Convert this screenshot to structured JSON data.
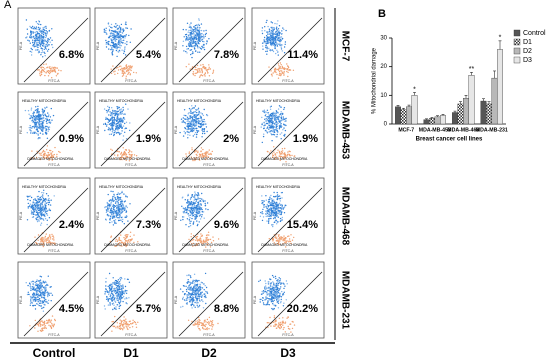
{
  "panel_a": {
    "label": "A",
    "columns": [
      "Control",
      "D1",
      "D2",
      "D3"
    ],
    "rows": [
      {
        "name": "MCF-7",
        "values": [
          "6.8%",
          "5.4%",
          "7.8%",
          "11.4%"
        ]
      },
      {
        "name": "MDAMB-453",
        "values": [
          "0.9%",
          "1.9%",
          "2%",
          "1.9%"
        ]
      },
      {
        "name": "MDAMB-468",
        "values": [
          "2.4%",
          "7.3%",
          "9.6%",
          "15.4%"
        ]
      },
      {
        "name": "MDAMB-231",
        "values": [
          "4.5%",
          "5.7%",
          "8.8%",
          "20.2%"
        ]
      }
    ],
    "healthy_label": "HEALTHY MITOCHONDRIA",
    "damaged_label": "DAMAGED MITOCHONDRIA",
    "x_axis": "FITC-A",
    "y_axis": "PE-A"
  },
  "chart_data": {
    "type": "bar",
    "panel_label": "B",
    "categories": [
      "MCF-7",
      "MDA-MB-453",
      "MDA-MB-468",
      "MDA-MB-231"
    ],
    "x_label": "Breast cancer cell lines",
    "y_label": "% Mitochondrial damage",
    "ylim": [
      0,
      30
    ],
    "yticks": [
      0,
      10,
      20,
      30
    ],
    "series": [
      {
        "name": "Control",
        "color": "#555555",
        "values": [
          6,
          1.5,
          4,
          8
        ],
        "errors": [
          0.5,
          0.3,
          0.5,
          0.8
        ]
      },
      {
        "name": "D1",
        "color": "#999999",
        "pattern": "checker",
        "values": [
          5,
          2,
          7,
          7
        ],
        "errors": [
          0.5,
          0.3,
          0.8,
          0.8
        ]
      },
      {
        "name": "D2",
        "color": "#b8b8b8",
        "values": [
          6,
          2.5,
          9,
          16
        ],
        "errors": [
          0.6,
          0.4,
          1,
          2.5
        ]
      },
      {
        "name": "D3",
        "color": "#e6e6e6",
        "values": [
          10,
          3,
          17,
          26
        ],
        "errors": [
          1,
          0.4,
          1,
          3
        ]
      }
    ],
    "annotations": [
      {
        "text": "*",
        "category": 0,
        "series": 3
      },
      {
        "text": "**",
        "category": 2,
        "series": 3
      },
      {
        "text": "*",
        "category": 3,
        "series": 3
      }
    ]
  }
}
